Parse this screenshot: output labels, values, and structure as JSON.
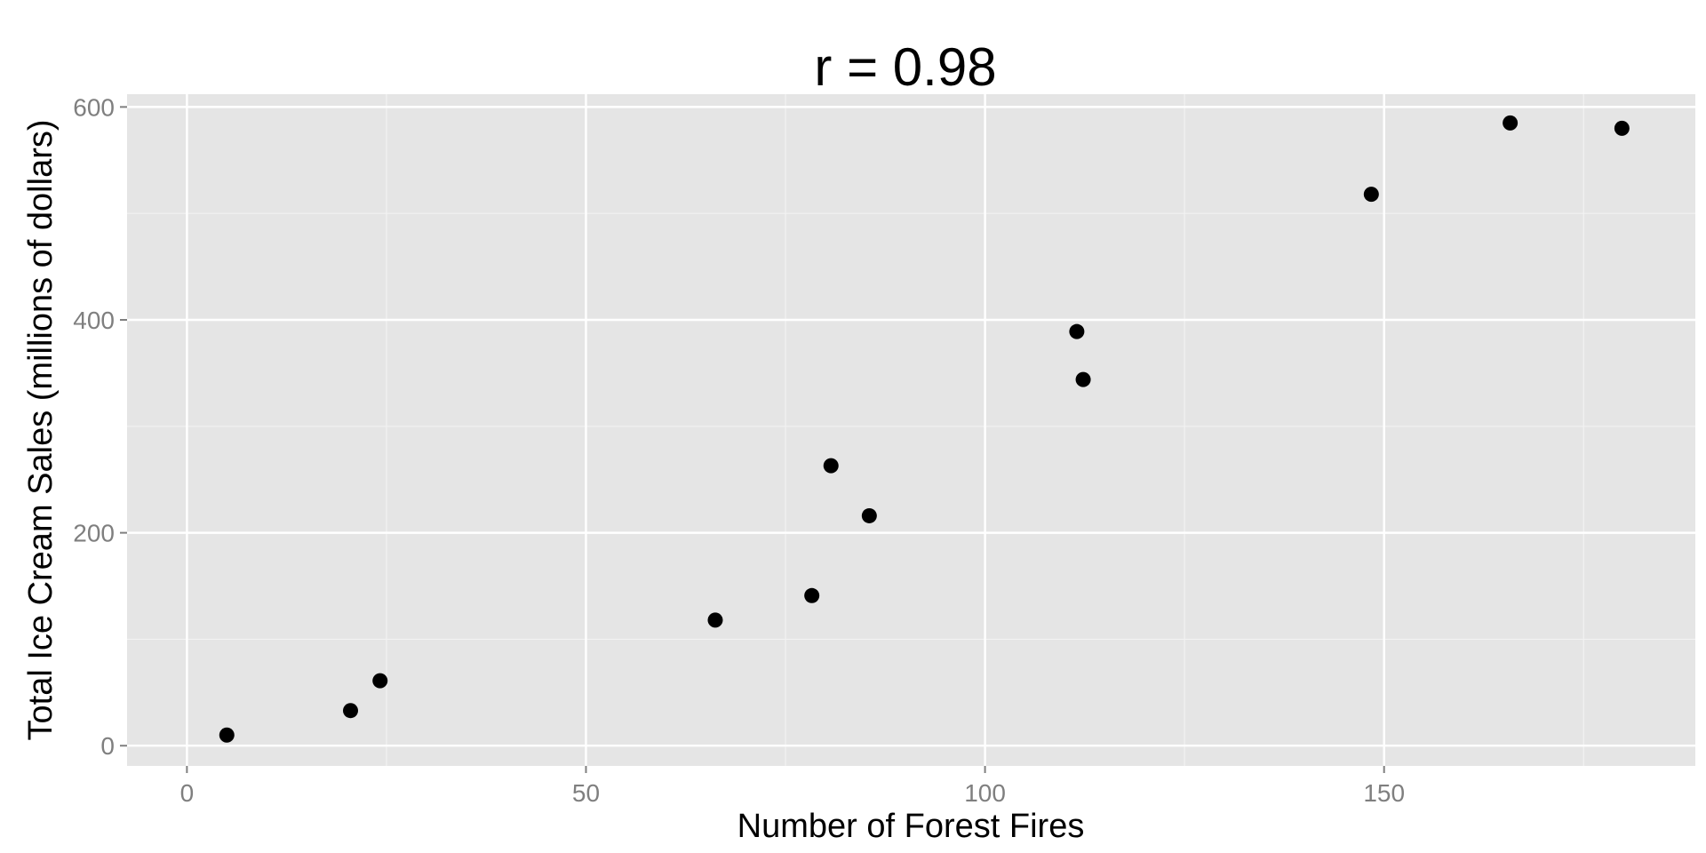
{
  "chart_data": {
    "type": "scatter",
    "title": "r = 0.98",
    "xlabel": "Number of Forest Fires",
    "ylabel": "Total Ice Cream Sales (millions of dollars)",
    "xlim": [
      -7.5,
      189
    ],
    "ylim": [
      -19,
      612
    ],
    "x_ticks": [
      0,
      50,
      100,
      150
    ],
    "x_minor_ticks": [
      25,
      75,
      125,
      175
    ],
    "y_ticks": [
      0,
      200,
      400,
      600
    ],
    "y_minor_ticks": [
      100,
      300,
      500
    ],
    "x_tick_labels": [
      "0",
      "50",
      "100",
      "150"
    ],
    "y_tick_labels": [
      "0",
      "200",
      "400",
      "600"
    ],
    "grid": true,
    "points": [
      {
        "x": 5,
        "y": 10
      },
      {
        "x": 20.5,
        "y": 33
      },
      {
        "x": 24.2,
        "y": 61
      },
      {
        "x": 66.2,
        "y": 118
      },
      {
        "x": 78.3,
        "y": 141
      },
      {
        "x": 80.7,
        "y": 263
      },
      {
        "x": 85.5,
        "y": 216
      },
      {
        "x": 111.5,
        "y": 389
      },
      {
        "x": 112.3,
        "y": 344
      },
      {
        "x": 148.4,
        "y": 518
      },
      {
        "x": 165.8,
        "y": 585
      },
      {
        "x": 179.8,
        "y": 580
      }
    ],
    "colors": {
      "panel_background": "#e5e5e5",
      "major_grid": "#ffffff",
      "minor_grid": "#f2f2f2",
      "point": "#000000",
      "tick_label": "#7f7f7f",
      "tick_mark": "#7f7f7f"
    }
  }
}
